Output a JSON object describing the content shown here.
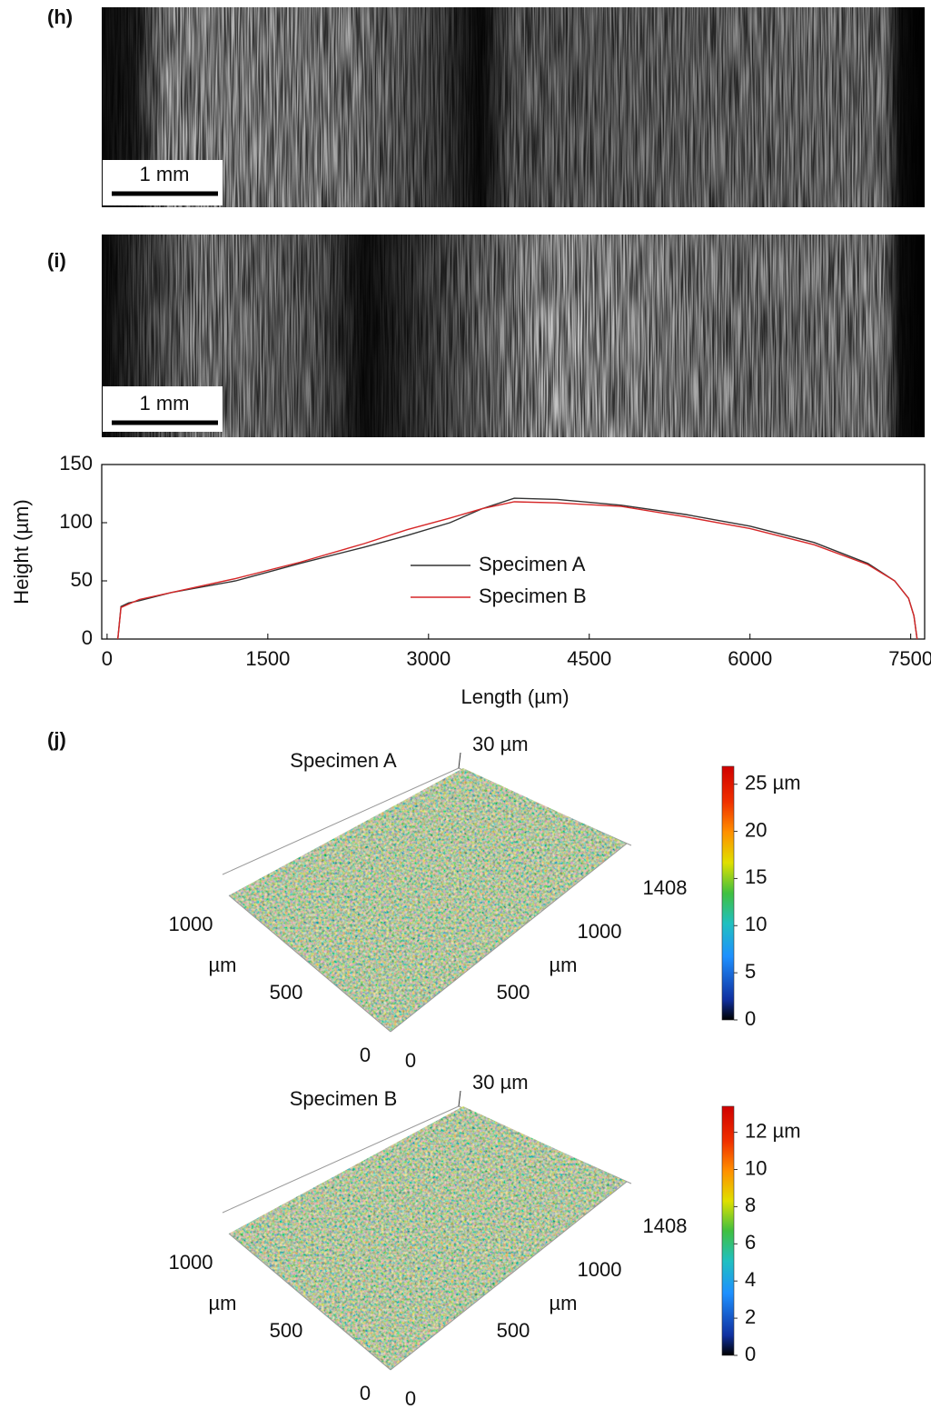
{
  "panels": {
    "h": {
      "label": "(h)",
      "scale_bar": "1 mm"
    },
    "i": {
      "label": "(i)",
      "scale_bar": "1 mm"
    },
    "j": {
      "label": "(j)"
    }
  },
  "chart_data": {
    "type": "line",
    "xlabel": "Length (µm)",
    "ylabel": "Height (µm)",
    "x": [
      100,
      130,
      200,
      300,
      600,
      1200,
      1800,
      2400,
      2800,
      3200,
      3500,
      3800,
      4200,
      4800,
      5400,
      6000,
      6600,
      7100,
      7350,
      7480,
      7530,
      7560
    ],
    "series": [
      {
        "name": "Specimen A",
        "color": "#333333",
        "values": [
          0,
          28,
          31,
          33,
          40,
          50,
          65,
          79,
          89,
          100,
          112,
          121,
          120,
          115,
          107,
          97,
          83,
          65,
          50,
          35,
          20,
          0
        ]
      },
      {
        "name": "Specimen B",
        "color": "#d62728",
        "values": [
          0,
          27,
          30,
          34,
          40,
          52,
          66,
          82,
          94,
          104,
          112,
          118,
          117,
          114,
          105,
          95,
          81,
          64,
          50,
          35,
          20,
          0
        ]
      }
    ],
    "xlim": [
      -50,
      7630
    ],
    "ylim": [
      0,
      150
    ],
    "xticks": [
      0,
      1500,
      3000,
      4500,
      6000,
      7500
    ],
    "yticks": [
      0,
      50,
      100,
      150
    ]
  },
  "surfaces": [
    {
      "title": "Specimen A",
      "z_label": "30 µm",
      "left_axis": {
        "ticks": [
          0,
          500,
          1000
        ],
        "unit": "µm"
      },
      "right_axis": {
        "ticks": [
          0,
          500,
          1000,
          1408
        ],
        "unit": "µm"
      },
      "colorbar": {
        "range": [
          0,
          26.9
        ],
        "ticks": [
          0,
          5,
          10,
          15,
          20,
          {
            "value": 25,
            "label": "25 µm"
          }
        ]
      }
    },
    {
      "title": "Specimen B",
      "z_label": "30 µm",
      "left_axis": {
        "ticks": [
          0,
          500,
          1000
        ],
        "unit": "µm"
      },
      "right_axis": {
        "ticks": [
          0,
          500,
          1000,
          1408
        ],
        "unit": "µm"
      },
      "colorbar": {
        "range": [
          0,
          13.4
        ],
        "ticks": [
          0,
          2,
          4,
          6,
          8,
          10,
          {
            "value": 12,
            "label": "12 µm"
          }
        ]
      }
    }
  ]
}
